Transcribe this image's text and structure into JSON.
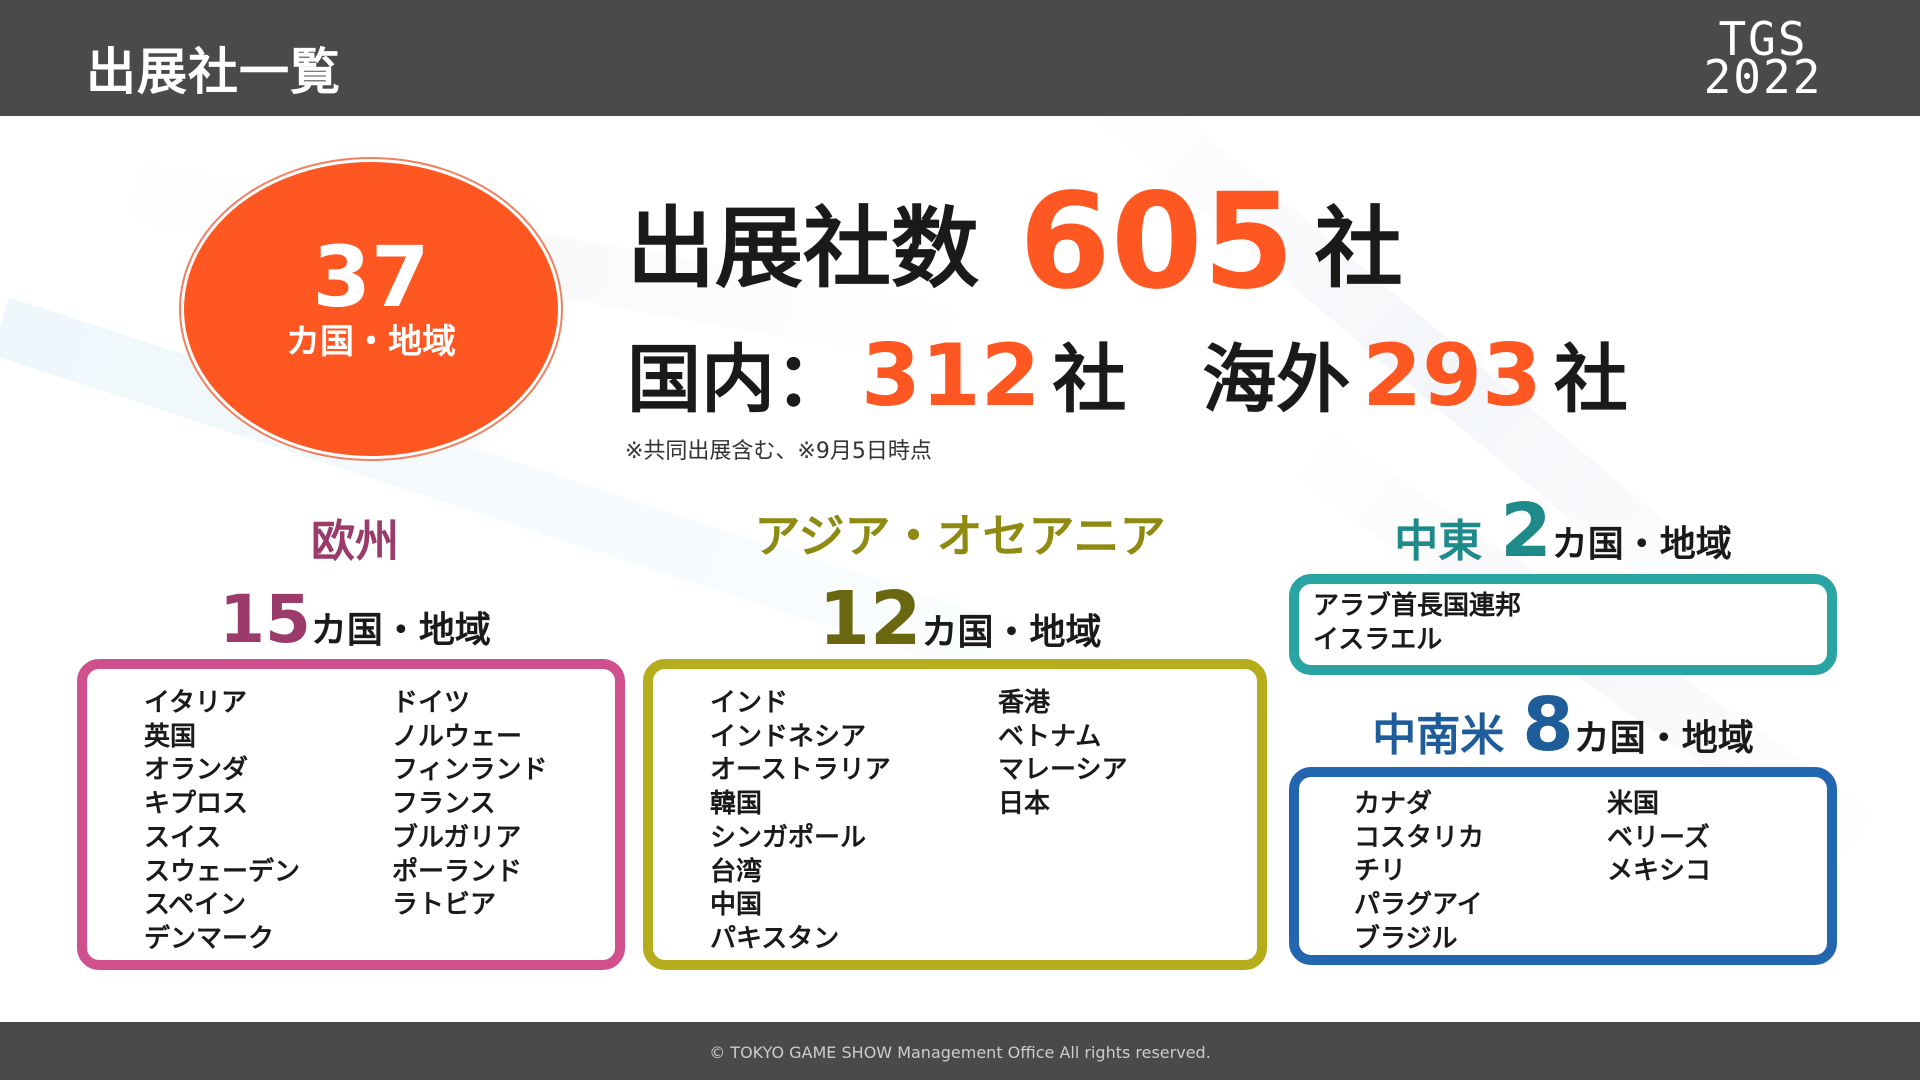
{
  "header": {
    "title": "出展社一覧",
    "logo_line1": "TGS",
    "logo_line2": "2022"
  },
  "summary": {
    "countries_count": "37",
    "countries_unit": "カ国・地域",
    "total_label": "出展社数",
    "total_count": "605",
    "unit": "社",
    "domestic_label": "国内：",
    "domestic_count": "312",
    "overseas_label": "海外",
    "overseas_count": "293",
    "note": "※共同出展含む、※9月5日時点"
  },
  "regions": {
    "europe": {
      "name": "欧州",
      "count": "15",
      "unit": "カ国・地域",
      "color": "#d04f8d",
      "col1": [
        "イタリア",
        "英国",
        "オランダ",
        "キプロス",
        "スイス",
        "スウェーデン",
        "スペイン",
        "デンマーク"
      ],
      "col2": [
        "ドイツ",
        "ノルウェー",
        "フィンランド",
        "フランス",
        "ブルガリア",
        "ポーランド",
        "ラトビア"
      ]
    },
    "asia": {
      "name": "アジア・オセアニア",
      "count": "12",
      "unit": "カ国・地域",
      "color": "#b5ad1c",
      "col1": [
        "インド",
        "インドネシア",
        "オーストラリア",
        "韓国",
        "シンガポール",
        "台湾",
        "中国",
        "パキスタン"
      ],
      "col2": [
        "香港",
        "ベトナム",
        "マレーシア",
        "日本"
      ]
    },
    "middle_east": {
      "name": "中東",
      "count": "2",
      "unit": "カ国・地域",
      "color": "#2aa3a3",
      "col1": [
        "アラブ首長国連邦",
        "イスラエル"
      ]
    },
    "latin_america": {
      "name": "中南米",
      "count": "8",
      "unit": "カ国・地域",
      "color": "#2266b0",
      "col1": [
        "カナダ",
        "コスタリカ",
        "チリ",
        "パラグアイ",
        "ブラジル"
      ],
      "col2": [
        "米国",
        "ベリーズ",
        "メキシコ"
      ]
    }
  },
  "footer": {
    "copyright": "© TOKYO GAME SHOW Management Office All rights reserved."
  }
}
